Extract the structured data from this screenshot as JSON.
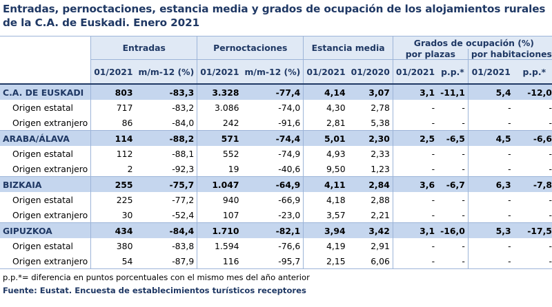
{
  "title": "Entradas, pernoctaciones, estancia media y grados de ocupación de los alojamientos rurales de la C.A. de Euskadi.  Enero 2021",
  "header": {
    "entradas": "Entradas",
    "pernoctaciones": "Pernoctaciones",
    "estancia": "Estancia media",
    "grados": "Grados de ocupación (%)",
    "por_plazas": "por plazas",
    "por_habitaciones": "por habitaciones",
    "sub": [
      "01/2021",
      "m/m-12 (%)",
      "01/2021",
      "m/m-12 (%)",
      "01/2021",
      "01/2020",
      "01/2021",
      "p.p.*",
      "01/2021",
      "p.p.*"
    ]
  },
  "rows": [
    {
      "type": "region",
      "label": "C.A. DE EUSKADI",
      "v": [
        "803",
        "-83,3",
        "3.328",
        "-77,4",
        "4,14",
        "3,07",
        "3,1",
        "-11,1",
        "5,4",
        "-12,0"
      ]
    },
    {
      "type": "sub",
      "label": "Origen estatal",
      "v": [
        "717",
        "-83,2",
        "3.086",
        "-74,0",
        "4,30",
        "2,78",
        "-",
        "-",
        "-",
        "-"
      ]
    },
    {
      "type": "sub",
      "label": "Origen extranjero",
      "v": [
        "86",
        "-84,0",
        "242",
        "-91,6",
        "2,81",
        "5,38",
        "-",
        "-",
        "-",
        "-"
      ]
    },
    {
      "type": "region",
      "label": "ARABA/ÁLAVA",
      "v": [
        "114",
        "-88,2",
        "571",
        "-74,4",
        "5,01",
        "2,30",
        "2,5",
        "-6,5",
        "4,5",
        "-6,6"
      ]
    },
    {
      "type": "sub",
      "label": "Origen estatal",
      "v": [
        "112",
        "-88,1",
        "552",
        "-74,9",
        "4,93",
        "2,33",
        "-",
        "-",
        "-",
        "-"
      ]
    },
    {
      "type": "sub",
      "label": "Origen extranjero",
      "v": [
        "2",
        "-92,3",
        "19",
        "-40,6",
        "9,50",
        "1,23",
        "-",
        "-",
        "-",
        "-"
      ]
    },
    {
      "type": "region",
      "label": "BIZKAIA",
      "v": [
        "255",
        "-75,7",
        "1.047",
        "-64,9",
        "4,11",
        "2,84",
        "3,6",
        "-6,7",
        "6,3",
        "-7,8"
      ]
    },
    {
      "type": "sub",
      "label": "Origen estatal",
      "v": [
        "225",
        "-77,2",
        "940",
        "-66,9",
        "4,18",
        "2,88",
        "-",
        "-",
        "-",
        "-"
      ]
    },
    {
      "type": "sub",
      "label": "Origen extranjero",
      "v": [
        "30",
        "-52,4",
        "107",
        "-23,0",
        "3,57",
        "2,21",
        "-",
        "-",
        "-",
        "-"
      ]
    },
    {
      "type": "region",
      "label": "GIPUZKOA",
      "v": [
        "434",
        "-84,4",
        "1.710",
        "-82,1",
        "3,94",
        "3,42",
        "3,1",
        "-16,0",
        "5,3",
        "-17,5"
      ]
    },
    {
      "type": "sub",
      "label": "Origen estatal",
      "v": [
        "380",
        "-83,8",
        "1.594",
        "-76,6",
        "4,19",
        "2,91",
        "-",
        "-",
        "-",
        "-"
      ]
    },
    {
      "type": "sub",
      "label": "Origen extranjero",
      "v": [
        "54",
        "-87,9",
        "116",
        "-95,7",
        "2,15",
        "6,06",
        "-",
        "-",
        "-",
        "-"
      ]
    }
  ],
  "note": "p.p.*= diferencia en puntos porcentuales con el mismo mes del año anterior",
  "source": "Fuente: Eustat. Encuesta de establecimientos turísticos receptores"
}
